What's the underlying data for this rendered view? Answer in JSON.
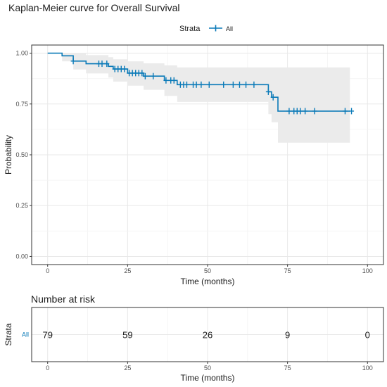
{
  "chart_data": [
    {
      "type": "line",
      "title": "Kaplan-Meier curve for Overall Survival",
      "xlabel": "Time (months)",
      "ylabel": "Probability",
      "xlim": [
        -5,
        105
      ],
      "ylim": [
        -0.04,
        1.04
      ],
      "x_ticks": [
        0,
        25,
        50,
        75,
        100
      ],
      "y_ticks": [
        "0.00",
        "0.25",
        "0.50",
        "0.75",
        "1.00"
      ],
      "grid": true,
      "legend": {
        "title": "Strata",
        "position": "top",
        "entries": [
          "All"
        ]
      },
      "colors": {
        "line": "#0a7ab8",
        "ci_band": "#ebebeb",
        "grid": "#e8e8e8",
        "panel_border": "#333333"
      },
      "series": [
        {
          "name": "All",
          "step_x": [
            0,
            4.5,
            8,
            12,
            19,
            20.5,
            25,
            30,
            36.5,
            40.5,
            69,
            70,
            72,
            94.5
          ],
          "step_y": [
            1.0,
            0.987,
            0.961,
            0.948,
            0.935,
            0.922,
            0.902,
            0.887,
            0.866,
            0.845,
            0.81,
            0.783,
            0.715,
            0.715
          ],
          "ci_lower": [
            1.0,
            0.96,
            0.92,
            0.9,
            0.88,
            0.86,
            0.84,
            0.82,
            0.79,
            0.76,
            0.7,
            0.66,
            0.56,
            0.56
          ],
          "ci_upper": [
            1.0,
            1.0,
            1.0,
            0.99,
            0.98,
            0.97,
            0.96,
            0.95,
            0.94,
            0.93,
            0.93,
            0.93,
            0.93,
            0.93
          ],
          "censored_x": [
            8,
            16,
            17,
            18.5,
            21,
            22,
            23,
            24,
            25.5,
            26.5,
            27.5,
            28.5,
            29.5,
            30.5,
            33,
            37,
            38.5,
            39.5,
            41.5,
            42.5,
            43.5,
            45.5,
            46.5,
            48,
            50.5,
            55,
            58,
            60,
            62,
            64.5,
            69,
            70.5,
            75.5,
            77,
            78,
            79,
            80.5,
            83.5,
            93,
            95
          ]
        }
      ]
    },
    {
      "type": "table",
      "title": "Number at risk",
      "xlabel": "Time (months)",
      "ylabel": "Strata",
      "row_label": "All",
      "x": [
        0,
        25,
        50,
        75,
        100
      ],
      "values": [
        "79",
        "59",
        "26",
        "9",
        "0"
      ]
    }
  ]
}
